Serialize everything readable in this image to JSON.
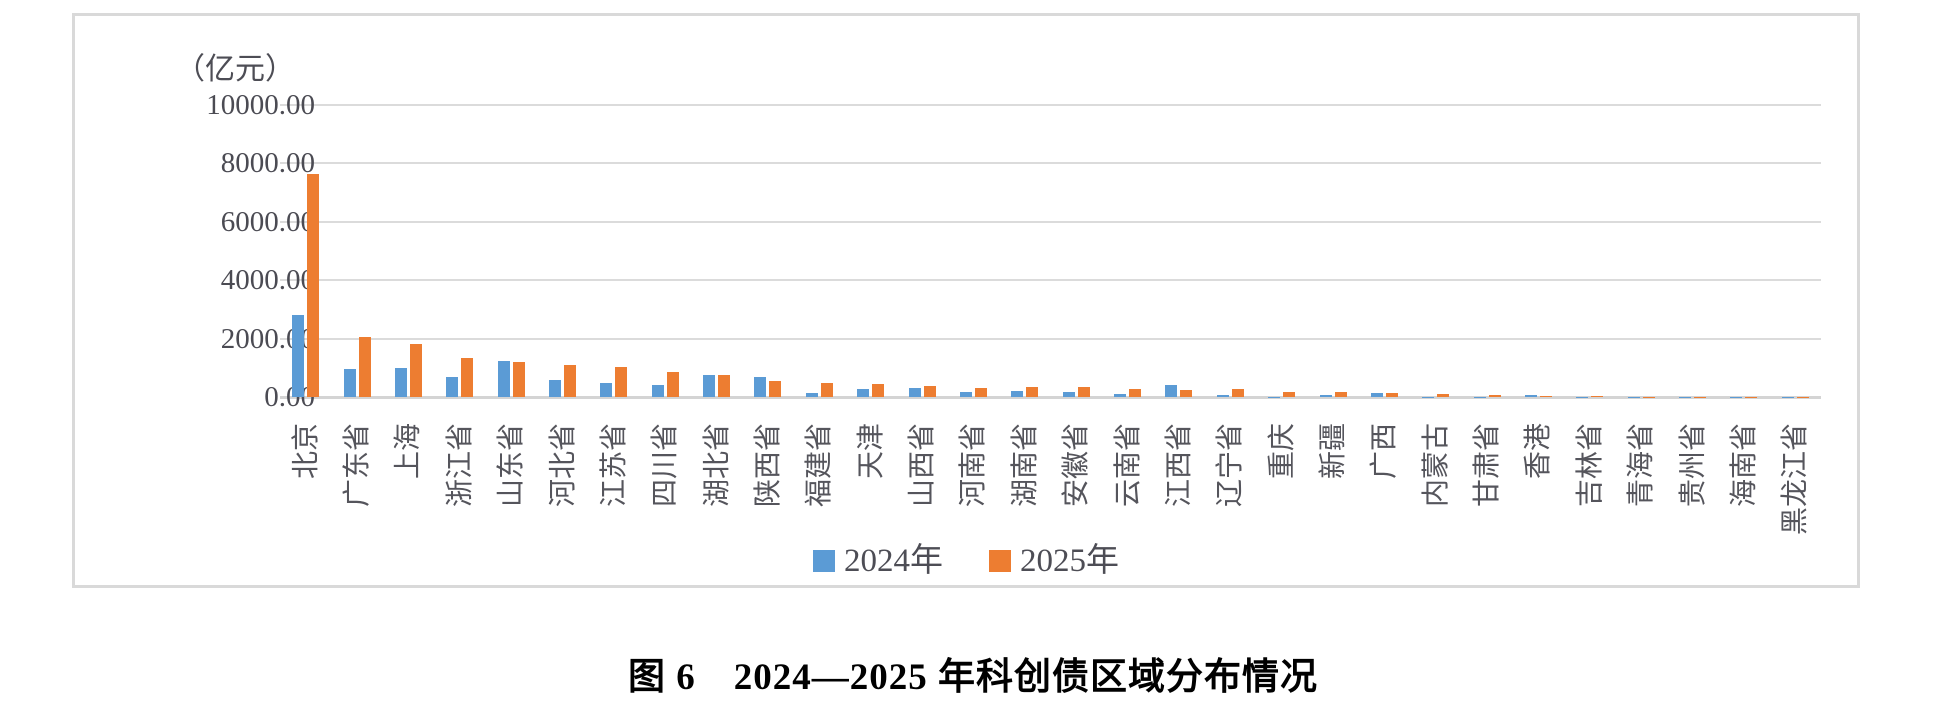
{
  "unit_label": "（亿元）",
  "caption": "图 6　2024—2025 年科创债区域分布情况",
  "y_axis": {
    "ticks": [
      "10000.00",
      "8000.00",
      "6000.00",
      "4000.00",
      "2000.00",
      "0.00"
    ],
    "max": 10000,
    "min": 0,
    "step": 2000
  },
  "legend": [
    {
      "label": "2024年",
      "color": "#5B9BD5"
    },
    {
      "label": "2025年",
      "color": "#ED7D31"
    }
  ],
  "chart_data": {
    "type": "bar",
    "title": "图 6　2024—2025 年科创债区域分布情况",
    "ylabel": "（亿元）",
    "xlabel": "",
    "ylim": [
      0,
      10000
    ],
    "grid": true,
    "legend_position": "bottom",
    "categories": [
      "北京",
      "广东省",
      "上海",
      "浙江省",
      "山东省",
      "河北省",
      "江苏省",
      "四川省",
      "湖北省",
      "陕西省",
      "福建省",
      "天津",
      "山西省",
      "河南省",
      "湖南省",
      "安徽省",
      "云南省",
      "江西省",
      "辽宁省",
      "重庆",
      "新疆",
      "广西",
      "内蒙古",
      "甘肃省",
      "香港",
      "吉林省",
      "青海省",
      "贵州省",
      "海南省",
      "黑龙江省"
    ],
    "series": [
      {
        "name": "2024年",
        "color": "#5B9BD5",
        "values": [
          2800,
          950,
          1000,
          680,
          1230,
          580,
          490,
          420,
          760,
          670,
          150,
          260,
          320,
          160,
          200,
          185,
          110,
          420,
          60,
          15,
          65,
          120,
          12,
          10,
          55,
          8,
          5,
          4,
          3,
          2
        ]
      },
      {
        "name": "2025年",
        "color": "#ED7D31",
        "values": [
          7620,
          2070,
          1800,
          1350,
          1210,
          1110,
          1020,
          850,
          760,
          560,
          490,
          460,
          390,
          320,
          340,
          330,
          280,
          225,
          280,
          175,
          185,
          140,
          105,
          80,
          35,
          30,
          15,
          10,
          8,
          5
        ]
      }
    ]
  }
}
